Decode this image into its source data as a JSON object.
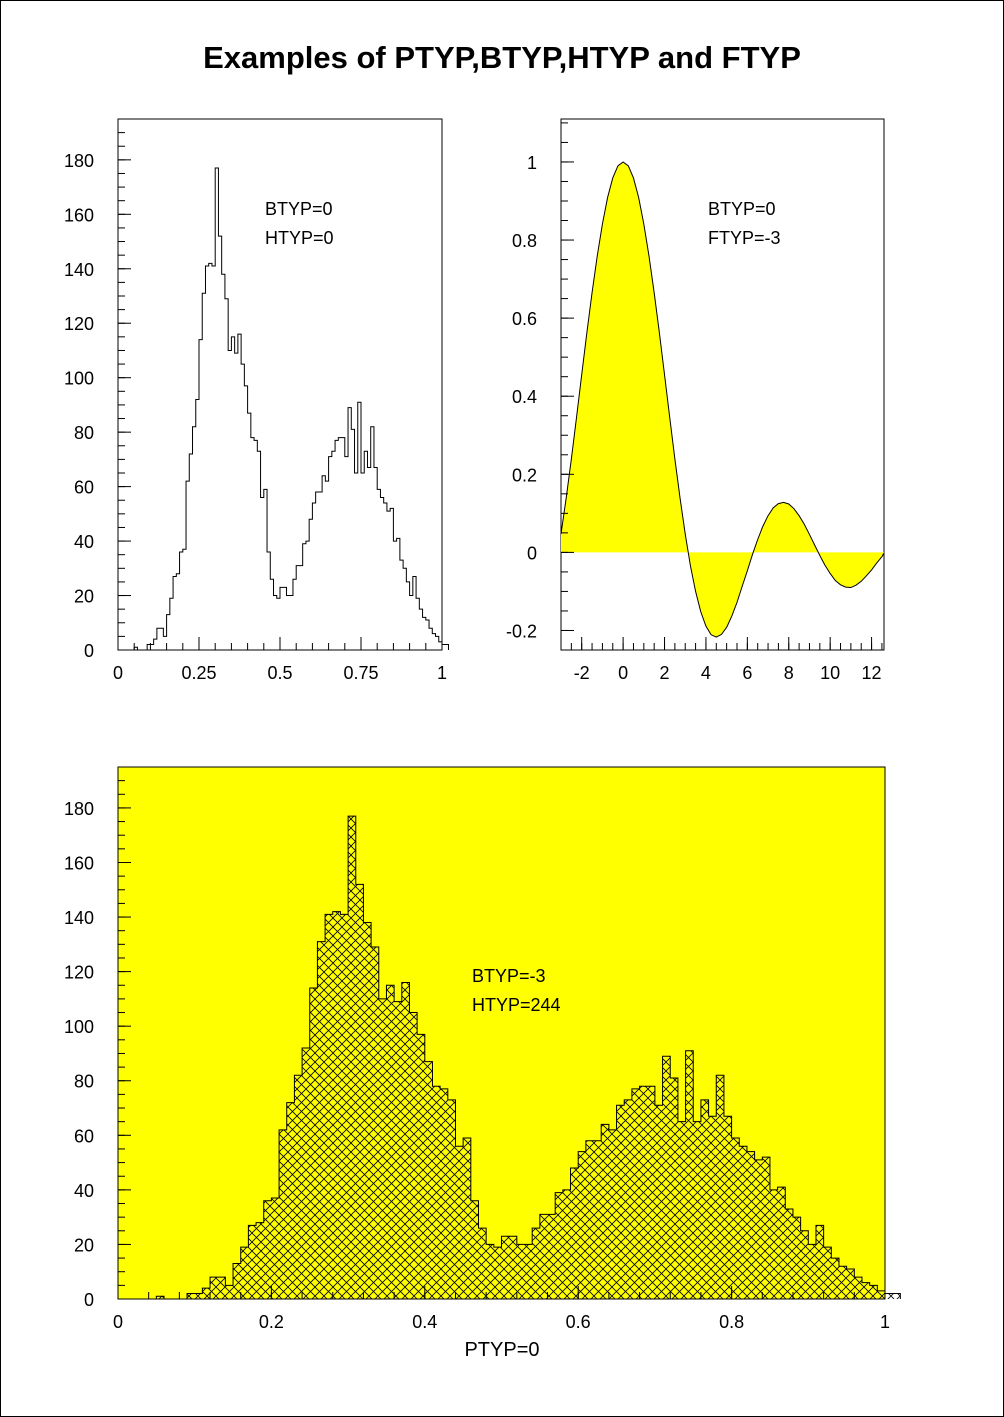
{
  "title": "Examples of PTYP,BTYP,HTYP and FTYP",
  "footer": "PTYP=0",
  "colors": {
    "fill": "#ffff00",
    "line": "#000000",
    "background": "#ffffff"
  },
  "chart_data": [
    {
      "type": "bar",
      "style": "step-histogram",
      "annotations": [
        "BTYP=0",
        "HTYP=0"
      ],
      "xlim": [
        0,
        1
      ],
      "ylim": [
        0,
        195
      ],
      "xticks": [
        0,
        0.25,
        0.5,
        0.75,
        1
      ],
      "xtick_labels": [
        "0",
        "0.25",
        "0.5",
        "0.75",
        "1"
      ],
      "yticks": [
        0,
        20,
        40,
        60,
        80,
        100,
        120,
        140,
        160,
        180
      ],
      "bin_width": 0.01,
      "values": [
        0,
        0,
        0,
        0,
        0,
        1,
        0,
        0,
        0,
        2,
        2,
        4,
        8,
        8,
        5,
        13,
        19,
        27,
        28,
        36,
        37,
        62,
        72,
        82,
        92,
        114,
        131,
        141,
        142,
        141,
        177,
        152,
        138,
        129,
        110,
        115,
        109,
        116,
        105,
        97,
        87,
        78,
        77,
        73,
        56,
        59,
        36,
        26,
        20,
        19,
        23,
        23,
        20,
        20,
        26,
        31,
        31,
        39,
        40,
        48,
        54,
        58,
        58,
        64,
        62,
        71,
        73,
        77,
        78,
        78,
        71,
        89,
        81,
        65,
        91,
        65,
        73,
        67,
        82,
        67,
        59,
        56,
        54,
        51,
        52,
        40,
        41,
        33,
        30,
        25,
        20,
        27,
        19,
        15,
        12,
        11,
        8,
        6,
        5,
        3,
        2,
        2
      ]
    },
    {
      "type": "area",
      "function": "sin(x)/x",
      "annotations": [
        "BTYP=0",
        "FTYP=-3"
      ],
      "xlim": [
        -3,
        12.6
      ],
      "ylim": [
        -0.25,
        1.11
      ],
      "xticks": [
        -2,
        0,
        2,
        4,
        6,
        8,
        10,
        12
      ],
      "xtick_labels": [
        "-2",
        "0",
        "2",
        "4",
        "6",
        "8",
        "10",
        "12"
      ],
      "yticks": [
        -0.2,
        0,
        0.2,
        0.4,
        0.6,
        0.8,
        1
      ],
      "ytick_labels": [
        "-0.2",
        "0",
        "0.2",
        "0.4",
        "0.6",
        "0.8",
        "1"
      ],
      "x": [
        -3,
        -2.75,
        -2.5,
        -2.25,
        -2,
        -1.75,
        -1.5,
        -1.25,
        -1,
        -0.75,
        -0.5,
        -0.25,
        0,
        0.25,
        0.5,
        0.75,
        1,
        1.25,
        1.5,
        1.75,
        2,
        2.25,
        2.5,
        2.75,
        3,
        3.25,
        3.5,
        3.75,
        4,
        4.25,
        4.5,
        4.75,
        5,
        5.25,
        5.5,
        5.75,
        6,
        6.25,
        6.5,
        6.75,
        7,
        7.25,
        7.5,
        7.75,
        8,
        8.25,
        8.5,
        8.75,
        9,
        9.25,
        9.5,
        9.75,
        10,
        10.25,
        10.5,
        10.75,
        11,
        11.25,
        11.5,
        11.75,
        12,
        12.25,
        12.5,
        12.6
      ],
      "y": [
        0.047,
        0.139,
        0.239,
        0.346,
        0.455,
        0.563,
        0.665,
        0.759,
        0.841,
        0.909,
        0.959,
        0.99,
        1,
        0.99,
        0.959,
        0.909,
        0.841,
        0.759,
        0.665,
        0.563,
        0.455,
        0.346,
        0.239,
        0.139,
        0.047,
        -0.034,
        -0.1,
        -0.152,
        -0.189,
        -0.211,
        -0.217,
        -0.21,
        -0.192,
        -0.163,
        -0.128,
        -0.087,
        -0.047,
        -0.005,
        0.033,
        0.067,
        0.094,
        0.114,
        0.125,
        0.128,
        0.124,
        0.112,
        0.094,
        0.072,
        0.046,
        0.019,
        -0.008,
        -0.033,
        -0.054,
        -0.072,
        -0.083,
        -0.089,
        -0.09,
        -0.084,
        -0.074,
        -0.06,
        -0.045,
        -0.027,
        -0.011,
        -0.002
      ]
    },
    {
      "type": "bar",
      "style": "step-histogram-hatched",
      "annotations": [
        "BTYP=-3",
        "HTYP=244"
      ],
      "xlim": [
        0,
        1
      ],
      "ylim": [
        0,
        195
      ],
      "xticks": [
        0,
        0.2,
        0.4,
        0.6,
        0.8,
        1
      ],
      "xtick_labels": [
        "0",
        "0.2",
        "0.4",
        "0.6",
        "0.8",
        "1"
      ],
      "yticks": [
        0,
        20,
        40,
        60,
        80,
        100,
        120,
        140,
        160,
        180
      ],
      "bin_width": 0.01,
      "same_values_as": 0
    }
  ]
}
